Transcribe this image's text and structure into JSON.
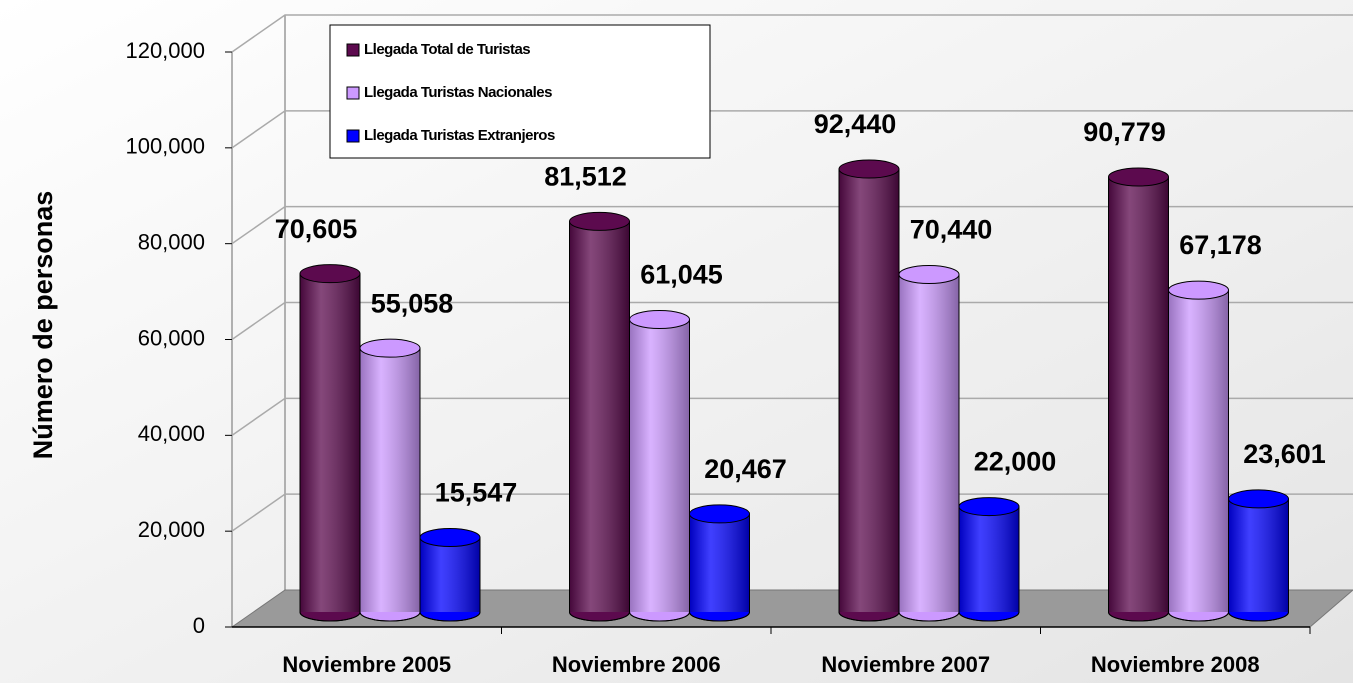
{
  "chart_data": {
    "type": "bar3d",
    "y_axis_label": "Número de personas",
    "categories": [
      "Noviembre 2005",
      "Noviembre 2006",
      "Noviembre 2007",
      "Noviembre 2008"
    ],
    "series": [
      {
        "name": "Llegada Total de Turistas",
        "color": "#5c0a4e",
        "values": [
          70605,
          81512,
          92440,
          90779
        ],
        "value_labels": [
          "70,605",
          "81,512",
          "92,440",
          "90,779"
        ]
      },
      {
        "name": "Llegada Turistas Nacionales",
        "color": "#cc99ff",
        "values": [
          55058,
          61045,
          70440,
          67178
        ],
        "value_labels": [
          "55,058",
          "61,045",
          "70,440",
          "67,178"
        ]
      },
      {
        "name": "Llegada Turistas Extranjeros",
        "color": "#0000ff",
        "values": [
          15547,
          20467,
          22000,
          23601
        ],
        "value_labels": [
          "15,547",
          "20,467",
          "22,000",
          "23,601"
        ]
      }
    ],
    "ylim": [
      0,
      120000
    ],
    "yticks": [
      0,
      {
        "value": 20000,
        "label": "20,000"
      },
      {
        "value": 40000,
        "label": "40,000"
      },
      {
        "value": 60000,
        "label": "60,000"
      },
      {
        "value": 80000,
        "label": "80,000"
      },
      {
        "value": 100000,
        "label": "100,000"
      },
      {
        "value": 120000,
        "label": "120,000"
      }
    ],
    "grid": true
  }
}
